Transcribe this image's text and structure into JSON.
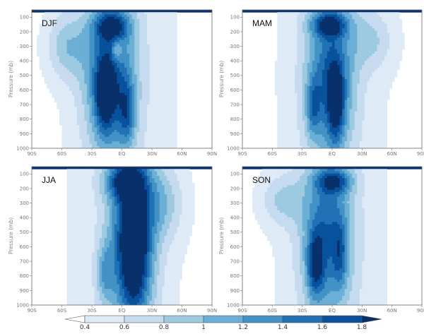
{
  "chart_data": {
    "type": "heatmap",
    "colors": [
      "#ffffff",
      "#deebf7",
      "#c6dbef",
      "#9ecae1",
      "#6baed6",
      "#4292c6",
      "#2171b5",
      "#08519c",
      "#08306b"
    ],
    "colorbar": {
      "ticks": [
        "0.4",
        "0.6",
        "0.8",
        "1",
        "1.2",
        "1.4",
        "1.6",
        "1.8"
      ],
      "levels": [
        0.4,
        0.6,
        0.8,
        1.0,
        1.2,
        1.4,
        1.6,
        1.8
      ],
      "extend": "both"
    },
    "xticks": [
      "90S",
      "60S",
      "30S",
      "EQ",
      "30N",
      "60N",
      "90N"
    ],
    "yticks": [
      "100",
      "200",
      "300",
      "400",
      "500",
      "600",
      "700",
      "800",
      "900",
      "1000"
    ],
    "ylabel": "Pressure (mb)",
    "xlim": [
      -90,
      90
    ],
    "ylim": [
      1000,
      50
    ],
    "panels": [
      {
        "name": "DJF",
        "blobs": [
          {
            "lat": -12,
            "p": 500,
            "slat": 18,
            "sp": 380,
            "amp": 1.15
          },
          {
            "lat": -17,
            "p": 640,
            "slat": 7,
            "sp": 180,
            "amp": 0.85
          },
          {
            "lat": -10,
            "p": 160,
            "slat": 13,
            "sp": 70,
            "amp": 0.85
          },
          {
            "lat": 5,
            "p": 760,
            "slat": 6,
            "sp": 160,
            "amp": 0.7
          },
          {
            "lat": -55,
            "p": 300,
            "slat": 14,
            "sp": 160,
            "amp": 0.55
          },
          {
            "lat": -5,
            "p": 330,
            "slat": 4,
            "sp": 60,
            "amp": -0.5
          }
        ]
      },
      {
        "name": "MAM",
        "blobs": [
          {
            "lat": -2,
            "p": 520,
            "slat": 17,
            "sp": 380,
            "amp": 1.1
          },
          {
            "lat": 4,
            "p": 700,
            "slat": 6,
            "sp": 200,
            "amp": 0.8
          },
          {
            "lat": -3,
            "p": 150,
            "slat": 13,
            "sp": 60,
            "amp": 0.95
          },
          {
            "lat": -19,
            "p": 720,
            "slat": 5,
            "sp": 140,
            "amp": 0.6
          },
          {
            "lat": 40,
            "p": 260,
            "slat": 15,
            "sp": 140,
            "amp": 0.4
          }
        ]
      },
      {
        "name": "JJA",
        "blobs": [
          {
            "lat": 10,
            "p": 560,
            "slat": 16,
            "sp": 420,
            "amp": 1.3
          },
          {
            "lat": 13,
            "p": 600,
            "slat": 10,
            "sp": 350,
            "amp": 0.7
          },
          {
            "lat": 2,
            "p": 150,
            "slat": 14,
            "sp": 90,
            "amp": 0.9
          },
          {
            "lat": -17,
            "p": 780,
            "slat": 6,
            "sp": 140,
            "amp": 0.55
          },
          {
            "lat": 40,
            "p": 300,
            "slat": 15,
            "sp": 180,
            "amp": 0.5
          }
        ]
      },
      {
        "name": "SON",
        "blobs": [
          {
            "lat": -5,
            "p": 520,
            "slat": 18,
            "sp": 380,
            "amp": 1.05
          },
          {
            "lat": -17,
            "p": 730,
            "slat": 6,
            "sp": 160,
            "amp": 0.85
          },
          {
            "lat": 2,
            "p": 150,
            "slat": 13,
            "sp": 60,
            "amp": 0.85
          },
          {
            "lat": 8,
            "p": 650,
            "slat": 5,
            "sp": 170,
            "amp": 0.5
          },
          {
            "lat": -50,
            "p": 280,
            "slat": 15,
            "sp": 120,
            "amp": 0.45
          }
        ]
      }
    ]
  }
}
